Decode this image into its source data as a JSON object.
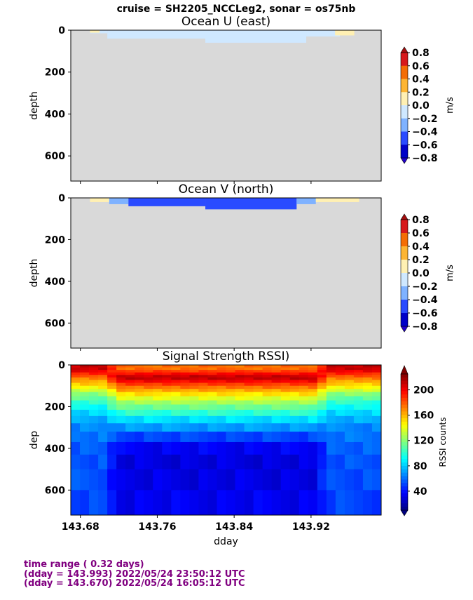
{
  "suptitle": "cruise = SH2205_NCCLeg2,  sonar = os75nb",
  "footer": {
    "line1": "time range ( 0.32 days)",
    "line2": "(dday = 143.993) 2022/05/24 23:50:12 UTC",
    "line3": "(dday = 143.670) 2022/05/24 16:05:12 UTC"
  },
  "chart_data": [
    {
      "type": "heatmap",
      "title": "Ocean U (east)",
      "ylabel": "depth",
      "xlabel": "",
      "xlim": [
        143.67,
        143.993
      ],
      "ylim": [
        720,
        0
      ],
      "yticks": [
        "0",
        "200",
        "400",
        "600"
      ],
      "xtick_values": [
        143.68,
        143.76,
        143.84,
        143.92
      ],
      "background_color": "#d9d9d9",
      "colorbar": {
        "label": "m/s",
        "ticks": [
          "0.8",
          "0.6",
          "0.4",
          "0.2",
          "0.0",
          "−0.2",
          "−0.4",
          "−0.6",
          "−0.8"
        ],
        "colors_top_to_bottom": [
          "#d7191c",
          "#f46d05",
          "#fdb533",
          "#fff0b3",
          "#ffffff",
          "#cfe8ff",
          "#7fb2ff",
          "#2a4bff",
          "#0000c8"
        ],
        "extend_top": "#a50f0f",
        "extend_bottom": "#2200cc"
      },
      "data_bands": [
        {
          "x0": 143.69,
          "x1": 143.708,
          "y0": 0,
          "y1": 15,
          "value": -0.15
        },
        {
          "x0": 143.708,
          "x1": 143.81,
          "y0": 0,
          "y1": 40,
          "value": -0.15
        },
        {
          "x0": 143.81,
          "x1": 143.915,
          "y0": 0,
          "y1": 60,
          "value": -0.15
        },
        {
          "x0": 143.915,
          "x1": 143.95,
          "y0": 0,
          "y1": 30,
          "value": -0.15
        },
        {
          "x0": 143.945,
          "x1": 143.965,
          "y0": 0,
          "y1": 25,
          "value": 0.1
        },
        {
          "x0": 143.69,
          "x1": 143.7,
          "y0": 0,
          "y1": 12,
          "value": 0.1
        }
      ]
    },
    {
      "type": "heatmap",
      "title": "Ocean V (north)",
      "ylabel": "depth",
      "xlabel": "",
      "xlim": [
        143.67,
        143.993
      ],
      "ylim": [
        720,
        0
      ],
      "yticks": [
        "0",
        "200",
        "400",
        "600"
      ],
      "xtick_values": [
        143.68,
        143.76,
        143.84,
        143.92
      ],
      "background_color": "#d9d9d9",
      "colorbar": {
        "label": "m/s",
        "ticks": [
          "0.8",
          "0.6",
          "0.4",
          "0.2",
          "0.0",
          "−0.2",
          "−0.4",
          "−0.6",
          "−0.8"
        ],
        "colors_top_to_bottom": [
          "#d7191c",
          "#f46d05",
          "#fdb533",
          "#fff0b3",
          "#ffffff",
          "#cfe8ff",
          "#7fb2ff",
          "#2a4bff",
          "#0000c8"
        ],
        "extend_top": "#a50f0f",
        "extend_bottom": "#2200cc"
      },
      "data_bands": [
        {
          "x0": 143.69,
          "x1": 143.71,
          "y0": 0,
          "y1": 20,
          "value": 0.1
        },
        {
          "x0": 143.71,
          "x1": 143.73,
          "y0": 0,
          "y1": 30,
          "value": -0.3
        },
        {
          "x0": 143.73,
          "x1": 143.81,
          "y0": 0,
          "y1": 40,
          "value": -0.5
        },
        {
          "x0": 143.81,
          "x1": 143.905,
          "y0": 0,
          "y1": 55,
          "value": -0.5
        },
        {
          "x0": 143.905,
          "x1": 143.925,
          "y0": 0,
          "y1": 30,
          "value": -0.3
        },
        {
          "x0": 143.925,
          "x1": 143.97,
          "y0": 0,
          "y1": 20,
          "value": 0.1
        }
      ]
    },
    {
      "type": "heatmap",
      "title": "Signal Strength RSSI)",
      "ylabel": "dep",
      "xlabel": "dday",
      "xlim": [
        143.67,
        143.993
      ],
      "ylim": [
        720,
        0
      ],
      "yticks": [
        "0",
        "200",
        "400",
        "600"
      ],
      "xticks": [
        "143.68",
        "143.76",
        "143.84",
        "143.92"
      ],
      "xtick_values": [
        143.68,
        143.76,
        143.84,
        143.92
      ],
      "colorbar": {
        "label": "RSSI counts",
        "ticks": [
          "200",
          "160",
          "120",
          "80",
          "40"
        ],
        "tick_values": [
          200,
          160,
          120,
          80,
          40
        ],
        "range": [
          10,
          225
        ],
        "colormap": "jet"
      },
      "rssi_profile_depths": [
        20,
        60,
        100,
        140,
        180,
        220,
        260,
        300,
        360,
        420,
        500,
        600,
        700
      ],
      "rssi_profile_shelf": [
        210,
        175,
        150,
        120,
        100,
        85,
        75,
        65,
        60,
        55,
        55,
        52,
        50
      ],
      "rssi_profile_deep": [
        175,
        215,
        180,
        150,
        125,
        105,
        85,
        70,
        45,
        30,
        30,
        32,
        35
      ]
    }
  ]
}
